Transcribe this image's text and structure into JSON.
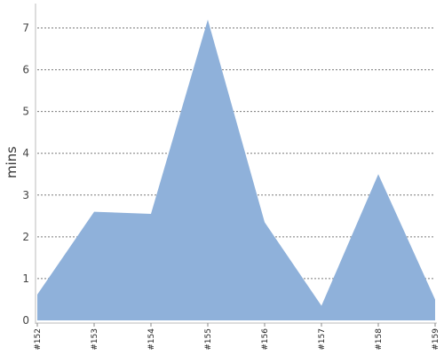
{
  "chart_data": {
    "type": "area",
    "title": "",
    "xlabel": "",
    "ylabel": "mins",
    "categories": [
      "#152",
      "#153",
      "#154",
      "#155",
      "#156",
      "#157",
      "#158",
      "#159"
    ],
    "values": [
      0.62,
      2.6,
      2.55,
      7.2,
      2.35,
      0.35,
      3.5,
      0.5
    ],
    "ylim": [
      0,
      7.5
    ],
    "yticks": [
      "0",
      "1",
      "2",
      "3",
      "4",
      "5",
      "6",
      "7"
    ],
    "grid": true,
    "legend": "none",
    "color": "#8fb1da"
  }
}
